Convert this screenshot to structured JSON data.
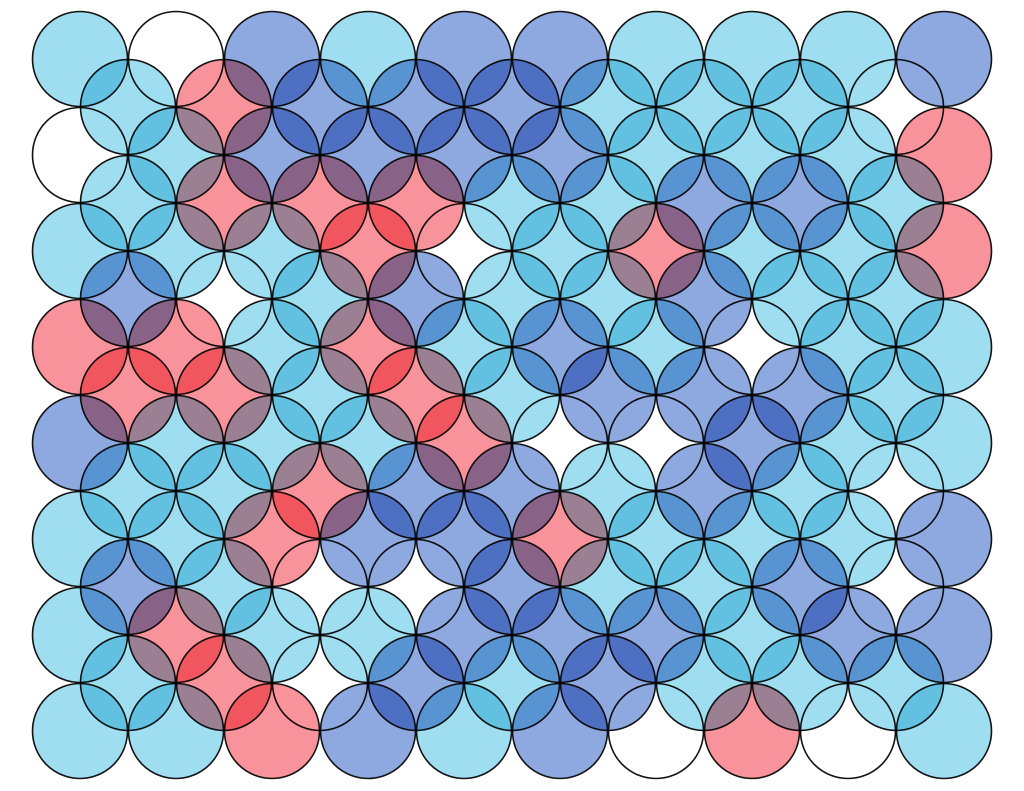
{
  "palette": {
    "L": "#4fc2e3",
    "W": "#ffffff",
    "B": "#2f63c4",
    "R": "#f23a48"
  },
  "board": {
    "outer_rows": [
      [
        "L",
        "W",
        "B",
        "L",
        "B",
        "B",
        "L",
        "L",
        "L",
        "B"
      ],
      [
        "W",
        "L",
        "B",
        "B",
        "B",
        "B",
        "L",
        "L",
        "L",
        "R"
      ],
      [
        "L",
        "L",
        "L",
        "R",
        "W",
        "L",
        "R",
        "L",
        "L",
        "R"
      ],
      [
        "R",
        "R",
        "L",
        "R",
        "L",
        "B",
        "L",
        "W",
        "L",
        "L"
      ],
      [
        "B",
        "L",
        "L",
        "L",
        "R",
        "W",
        "W",
        "B",
        "L",
        "L"
      ],
      [
        "L",
        "L",
        "R",
        "B",
        "B",
        "R",
        "L",
        "L",
        "L",
        "B"
      ],
      [
        "L",
        "R",
        "L",
        "L",
        "B",
        "B",
        "B",
        "L",
        "B",
        "B"
      ],
      [
        "L",
        "L",
        "R",
        "B",
        "L",
        "B",
        "W",
        "R",
        "W",
        "L"
      ]
    ],
    "inner_rows": [
      [
        "L",
        "R",
        "B",
        "B",
        "B",
        "L",
        "L",
        "L",
        "W"
      ],
      [
        "L",
        "R",
        "R",
        "R",
        "L",
        "L",
        "B",
        "B",
        "L"
      ],
      [
        "B",
        "W",
        "L",
        "B",
        "L",
        "L",
        "B",
        "L",
        "L"
      ],
      [
        "R",
        "R",
        "L",
        "R",
        "L",
        "B",
        "B",
        "B",
        "L"
      ],
      [
        "L",
        "L",
        "R",
        "B",
        "B",
        "L",
        "B",
        "L",
        "W"
      ],
      [
        "B",
        "L",
        "W",
        "W",
        "B",
        "L",
        "L",
        "B",
        "W"
      ],
      [
        "L",
        "R",
        "W",
        "B",
        "L",
        "B",
        "L",
        "L",
        "L"
      ]
    ]
  }
}
